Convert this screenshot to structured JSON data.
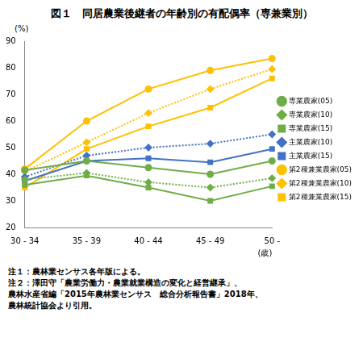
{
  "chart_data": {
    "type": "line",
    "title": "図１　同居農業後継者の年齢別の有配偶率（専兼業別）",
    "y_label": "(%)",
    "x_label": "(歳)",
    "notes": [
      "注１：農林業センサス各年版による。",
      "注２：澤田守「農業労働力・農業就業構造の変化と経営継承」、",
      "農林水産省編「2015年農林業センサス　総合分析報告書」2018年、",
      "農林統計協会より引用。"
    ],
    "categories": [
      "30 - 34",
      "35 - 39",
      "40 - 44",
      "45 - 49",
      "50 -"
    ],
    "series": [
      {
        "name": "専業農家(05)",
        "color": "#70ad47",
        "marker": "circle",
        "line_style": "solid",
        "values": [
          41.5,
          45,
          42.5,
          40,
          45
        ]
      },
      {
        "name": "専業農家(10)",
        "color": "#70ad47",
        "marker": "diamond",
        "line_style": "dotted",
        "values": [
          38,
          40.5,
          37,
          35,
          38.5
        ]
      },
      {
        "name": "専業農家(15)",
        "color": "#70ad47",
        "marker": "square",
        "line_style": "solid",
        "values": [
          36,
          39.5,
          35,
          30,
          35.5
        ]
      },
      {
        "name": "主業農家(10)",
        "color": "#4472c4",
        "marker": "diamond",
        "line_style": "dotted",
        "values": [
          39,
          47,
          50,
          51.5,
          55
        ]
      },
      {
        "name": "主業農家(15)",
        "color": "#4472c4",
        "marker": "square",
        "line_style": "solid",
        "values": [
          37.5,
          45,
          46,
          44.5,
          49.5
        ]
      },
      {
        "name": "第2種兼業農家(05)",
        "color": "#ffc000",
        "marker": "circle",
        "line_style": "solid",
        "values": [
          42,
          60,
          72,
          79,
          83.5
        ]
      },
      {
        "name": "第2種兼業農家(10)",
        "color": "#ffc000",
        "marker": "diamond",
        "line_style": "dotted",
        "values": [
          41,
          52,
          63,
          72,
          79.5
        ]
      },
      {
        "name": "第2種兼業農家(15)",
        "color": "#ffc000",
        "marker": "square",
        "line_style": "solid",
        "values": [
          35,
          49.5,
          58,
          65,
          76
        ]
      }
    ],
    "ylim": [
      20,
      90
    ],
    "yticks": [
      20,
      30,
      40,
      50,
      60,
      70,
      80,
      90
    ],
    "grid": false,
    "legend": "right"
  }
}
